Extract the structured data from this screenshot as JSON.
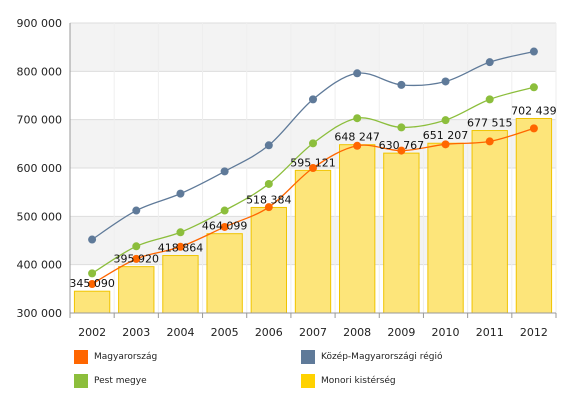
{
  "chart_data": {
    "type": "bar",
    "categories": [
      "2002",
      "2003",
      "2004",
      "2005",
      "2006",
      "2007",
      "2008",
      "2009",
      "2010",
      "2011",
      "2012"
    ],
    "ylim": [
      300000,
      900000
    ],
    "yticks": [
      300000,
      400000,
      500000,
      600000,
      700000,
      800000,
      900000
    ],
    "ytick_labels": [
      "300 000",
      "400 000",
      "500 000",
      "600 000",
      "700 000",
      "800 000",
      "900 000"
    ],
    "grid": true,
    "legend_position": "bottom",
    "series": [
      {
        "name": "Monori kistérség",
        "kind": "bar",
        "color": "#ffd200",
        "values": [
          345090,
          395920,
          418864,
          464099,
          518384,
          595121,
          648247,
          630767,
          651207,
          677515,
          702439
        ],
        "data_labels": [
          "345 090",
          "395 920",
          "418 864",
          "464 099",
          "518 384",
          "595 121",
          "648 247",
          "630 767",
          "651 207",
          "677 515",
          "702 439"
        ]
      },
      {
        "name": "Magyarország",
        "kind": "line",
        "color": "#ff6600",
        "values": [
          360000,
          412000,
          437000,
          478000,
          519000,
          600000,
          646000,
          636000,
          649000,
          655000,
          682000
        ]
      },
      {
        "name": "Közép-Magyarországi régió",
        "kind": "line",
        "color": "#5f7a99",
        "values": [
          452000,
          512000,
          547000,
          593000,
          647000,
          742000,
          796000,
          772000,
          779000,
          819000,
          841000
        ]
      },
      {
        "name": "Pest megye",
        "kind": "line",
        "color": "#8cbe3c",
        "values": [
          382000,
          438000,
          467000,
          512000,
          567000,
          651000,
          703000,
          684000,
          699000,
          742000,
          767000
        ]
      }
    ]
  },
  "legend": [
    {
      "label": "Magyarország",
      "color": "#ff6600"
    },
    {
      "label": "Közép-Magyarországi régió",
      "color": "#5f7a99"
    },
    {
      "label": "Pest megye",
      "color": "#8cbe3c"
    },
    {
      "label": "Monori kistérség",
      "color": "#ffd200"
    }
  ]
}
